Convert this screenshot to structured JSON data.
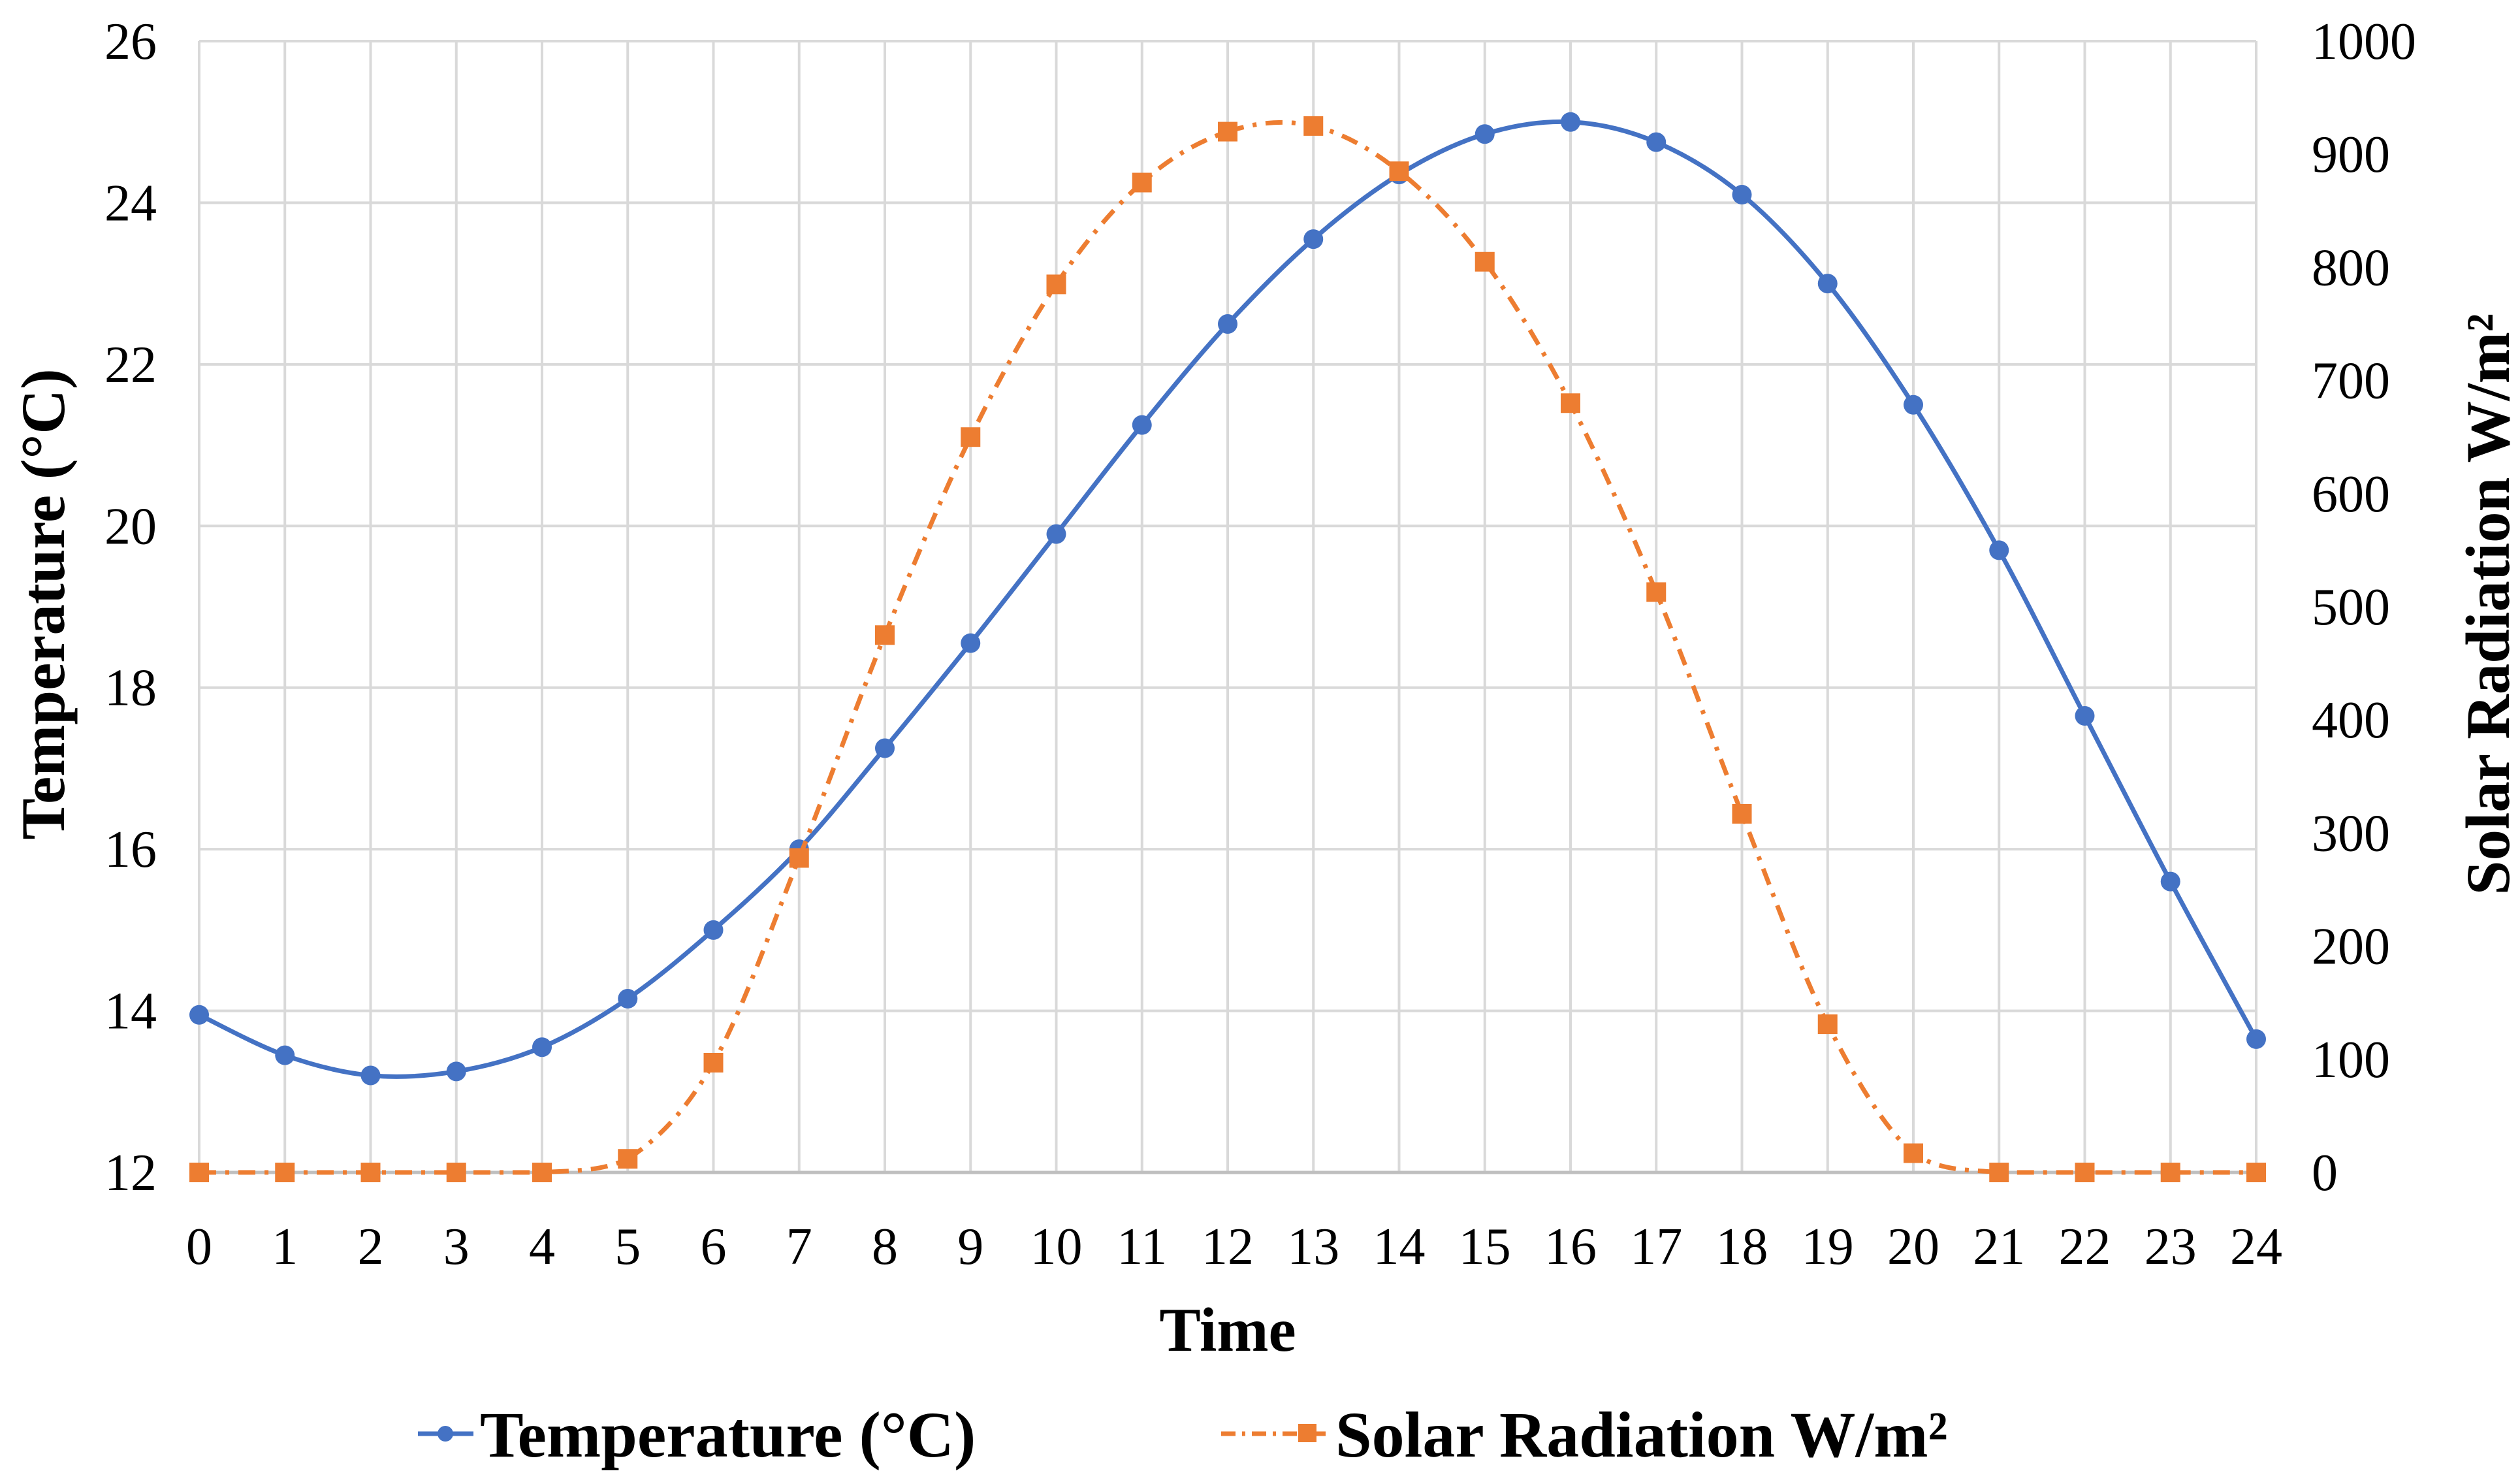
{
  "chart_data": {
    "type": "line",
    "title": "",
    "xlabel": "Time",
    "ylabel_left": "Temperature (°C)",
    "ylabel_right": "Solar Radiation W/m²",
    "x": [
      0,
      1,
      2,
      3,
      4,
      5,
      6,
      7,
      8,
      9,
      10,
      11,
      12,
      13,
      14,
      15,
      16,
      17,
      18,
      19,
      20,
      21,
      22,
      23,
      24
    ],
    "x_ticks": [
      "0",
      "1",
      "2",
      "3",
      "4",
      "5",
      "6",
      "7",
      "8",
      "9",
      "10",
      "11",
      "12",
      "13",
      "14",
      "15",
      "16",
      "17",
      "18",
      "19",
      "20",
      "21",
      "22",
      "23",
      "24"
    ],
    "ylim_left": [
      12,
      26
    ],
    "y_ticks_left": [
      "12",
      "14",
      "16",
      "18",
      "20",
      "22",
      "24",
      "26"
    ],
    "ylim_right": [
      0,
      1000
    ],
    "y_ticks_right": [
      "0",
      "100",
      "200",
      "300",
      "400",
      "500",
      "600",
      "700",
      "800",
      "900",
      "1000"
    ],
    "grid": true,
    "legend_position": "bottom",
    "series": [
      {
        "name": "Temperature (°C)",
        "axis": "left",
        "color": "#4472C4",
        "line_style": "solid",
        "marker": "circle",
        "values": [
          13.95,
          13.45,
          13.2,
          13.25,
          13.55,
          14.15,
          15.0,
          16.0,
          17.25,
          18.55,
          19.9,
          21.25,
          22.5,
          23.55,
          24.35,
          24.85,
          25.0,
          24.75,
          24.1,
          23.0,
          21.5,
          19.7,
          17.65,
          15.6,
          13.65
        ]
      },
      {
        "name": "Solar Radiation W/m²",
        "axis": "right",
        "color": "#ED7D31",
        "line_style": "dash-dot",
        "marker": "square",
        "values": [
          0,
          0,
          0,
          0,
          0,
          12,
          97,
          278,
          475,
          650,
          785,
          875,
          920,
          925,
          885,
          805,
          680,
          513,
          317,
          131,
          17,
          0,
          0,
          0,
          0
        ]
      }
    ]
  }
}
